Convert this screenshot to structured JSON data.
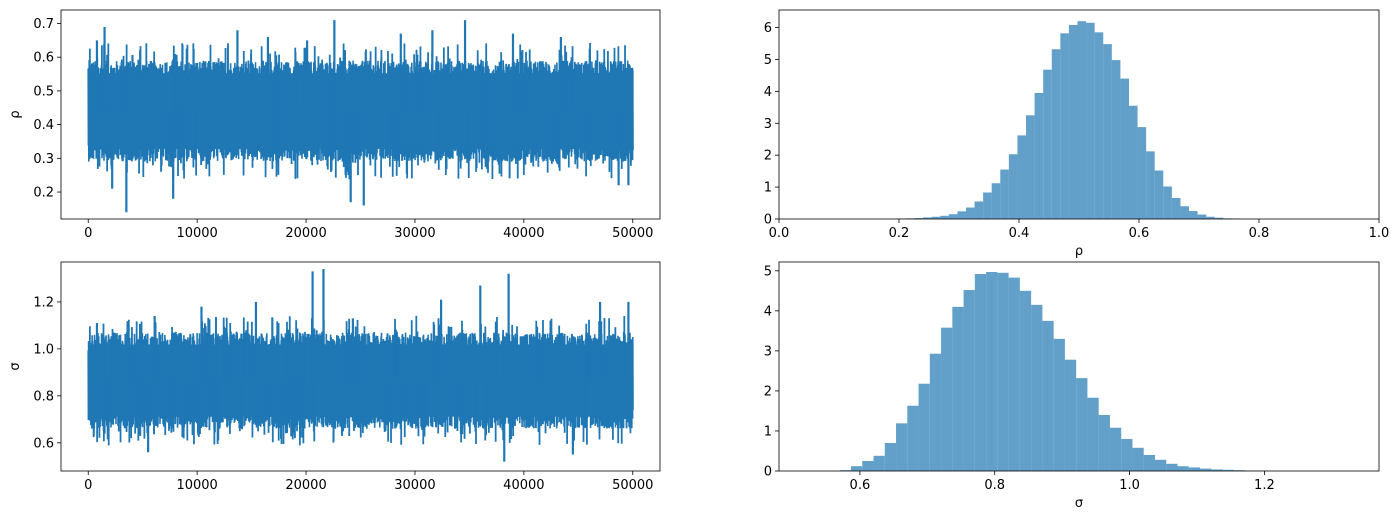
{
  "figure": {
    "background": "#ffffff",
    "trace_color": "#1f77b4",
    "hist_color": "#1f77b4",
    "hist_opacity": 0.7
  },
  "chart_data": [
    {
      "id": "trace-rho",
      "type": "line",
      "title": "",
      "xlabel": "",
      "ylabel": "ρ",
      "xlim": [
        -2500,
        52500
      ],
      "ylim": [
        0.12,
        0.74
      ],
      "xticks": [
        0,
        10000,
        20000,
        30000,
        40000,
        50000
      ],
      "xtick_labels": [
        "0",
        "10000",
        "20000",
        "30000",
        "40000",
        "50000"
      ],
      "yticks": [
        0.2,
        0.3,
        0.4,
        0.5,
        0.6,
        0.7
      ],
      "ytick_labels": [
        "0.2",
        "0.3",
        "0.4",
        "0.5",
        "0.6",
        "0.7"
      ],
      "grid": false,
      "n_samples": 50000,
      "band": {
        "lower": 0.29,
        "upper": 0.59
      },
      "spikes": [
        {
          "x": 800,
          "y": 0.65
        },
        {
          "x": 1500,
          "y": 0.69
        },
        {
          "x": 3500,
          "y": 0.14
        },
        {
          "x": 2200,
          "y": 0.21
        },
        {
          "x": 7800,
          "y": 0.18
        },
        {
          "x": 13700,
          "y": 0.68
        },
        {
          "x": 16500,
          "y": 0.66
        },
        {
          "x": 20100,
          "y": 0.65
        },
        {
          "x": 22600,
          "y": 0.71
        },
        {
          "x": 24100,
          "y": 0.17
        },
        {
          "x": 25300,
          "y": 0.16
        },
        {
          "x": 28700,
          "y": 0.67
        },
        {
          "x": 31600,
          "y": 0.68
        },
        {
          "x": 34600,
          "y": 0.71
        },
        {
          "x": 39000,
          "y": 0.67
        },
        {
          "x": 43400,
          "y": 0.66
        },
        {
          "x": 48700,
          "y": 0.22
        },
        {
          "x": 49600,
          "y": 0.22
        }
      ]
    },
    {
      "id": "hist-rho",
      "type": "bar",
      "title": "",
      "xlabel": "ρ",
      "ylabel": "",
      "xlim": [
        0.0,
        1.0
      ],
      "ylim": [
        0,
        6.55
      ],
      "xticks": [
        0.0,
        0.2,
        0.4,
        0.6,
        0.8,
        1.0
      ],
      "xtick_labels": [
        "0.0",
        "0.2",
        "0.4",
        "0.6",
        "0.8",
        "1.0"
      ],
      "yticks": [
        0,
        1,
        2,
        3,
        4,
        5,
        6
      ],
      "ytick_labels": [
        "0",
        "1",
        "2",
        "3",
        "4",
        "5",
        "6"
      ],
      "grid": false,
      "bin_start": 0.14,
      "bin_width": 0.0143,
      "values": [
        0.0,
        0.0,
        0.0,
        0.0,
        0.01,
        0.02,
        0.03,
        0.05,
        0.07,
        0.1,
        0.15,
        0.24,
        0.36,
        0.55,
        0.83,
        1.12,
        1.55,
        2.03,
        2.62,
        3.25,
        3.95,
        4.68,
        5.32,
        5.82,
        6.08,
        6.2,
        6.15,
        5.85,
        5.48,
        4.98,
        4.4,
        3.55,
        2.88,
        2.12,
        1.52,
        1.02,
        0.66,
        0.4,
        0.25,
        0.14,
        0.07,
        0.04,
        0.02,
        0.01,
        0.0,
        0.0
      ]
    },
    {
      "id": "trace-sigma",
      "type": "line",
      "title": "",
      "xlabel": "",
      "ylabel": "σ",
      "xlim": [
        -2500,
        52500
      ],
      "ylim": [
        0.48,
        1.37
      ],
      "xticks": [
        0,
        10000,
        20000,
        30000,
        40000,
        50000
      ],
      "xtick_labels": [
        "0",
        "10000",
        "20000",
        "30000",
        "40000",
        "50000"
      ],
      "yticks": [
        0.6,
        0.8,
        1.0,
        1.2
      ],
      "ytick_labels": [
        "0.6",
        "0.8",
        "1.0",
        "1.2"
      ],
      "grid": false,
      "n_samples": 50000,
      "band": {
        "lower": 0.66,
        "upper": 1.07
      },
      "spikes": [
        {
          "x": 800,
          "y": 1.11
        },
        {
          "x": 6100,
          "y": 1.14
        },
        {
          "x": 10400,
          "y": 1.18
        },
        {
          "x": 15400,
          "y": 1.2
        },
        {
          "x": 20600,
          "y": 1.33
        },
        {
          "x": 21600,
          "y": 1.34
        },
        {
          "x": 24300,
          "y": 1.13
        },
        {
          "x": 32400,
          "y": 1.21
        },
        {
          "x": 36000,
          "y": 1.27
        },
        {
          "x": 38600,
          "y": 1.32
        },
        {
          "x": 38200,
          "y": 0.52
        },
        {
          "x": 47000,
          "y": 1.2
        },
        {
          "x": 49600,
          "y": 1.2
        },
        {
          "x": 5500,
          "y": 0.56
        },
        {
          "x": 44500,
          "y": 0.55
        }
      ]
    },
    {
      "id": "hist-sigma",
      "type": "bar",
      "title": "",
      "xlabel": "σ",
      "ylabel": "",
      "xlim": [
        0.48,
        1.37
      ],
      "ylim": [
        0,
        5.22
      ],
      "xticks": [
        0.6,
        0.8,
        1.0,
        1.2
      ],
      "xtick_labels": [
        "0.6",
        "0.8",
        "1.0",
        "1.2"
      ],
      "yticks": [
        0,
        1,
        2,
        3,
        4,
        5
      ],
      "ytick_labels": [
        "0",
        "1",
        "2",
        "3",
        "4",
        "5"
      ],
      "grid": false,
      "bin_start": 0.52,
      "bin_width": 0.0167,
      "values": [
        0.0,
        0.0,
        0.0,
        0.02,
        0.12,
        0.25,
        0.38,
        0.7,
        1.19,
        1.63,
        2.18,
        2.93,
        3.58,
        4.1,
        4.52,
        4.92,
        4.97,
        4.95,
        4.83,
        4.5,
        4.15,
        3.75,
        3.3,
        2.78,
        2.32,
        1.83,
        1.4,
        1.08,
        0.8,
        0.58,
        0.4,
        0.28,
        0.18,
        0.12,
        0.09,
        0.06,
        0.04,
        0.03,
        0.02,
        0.01,
        0.01,
        0.0,
        0.0
      ]
    }
  ]
}
